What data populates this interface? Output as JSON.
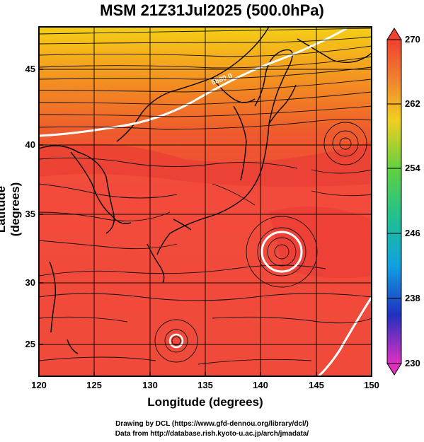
{
  "title": "MSM 21Z31Jul2025 (500.0hPa)",
  "x_axis": {
    "label": "Longitude (degrees)",
    "ticks": [
      "120",
      "125",
      "130",
      "135",
      "140",
      "145",
      "150"
    ]
  },
  "y_axis": {
    "label": "Latitude  (degrees)",
    "ticks": [
      "45",
      "40",
      "35",
      "30",
      "25"
    ]
  },
  "colorbar": {
    "ticks": [
      "270",
      "262",
      "254",
      "246",
      "238",
      "230"
    ]
  },
  "contour_label": "5880.0",
  "credits": {
    "line1": "Drawing by DCL (https://www.gfd-dennou.org/library/dcl/)",
    "line2": "Data from http://database.rish.kyoto-u.ac.jp/arch/jmadata/"
  },
  "colors": {
    "field_warm": "#f04a3a",
    "field_yellow": "#f5d018",
    "contour": "#ffffff"
  }
}
